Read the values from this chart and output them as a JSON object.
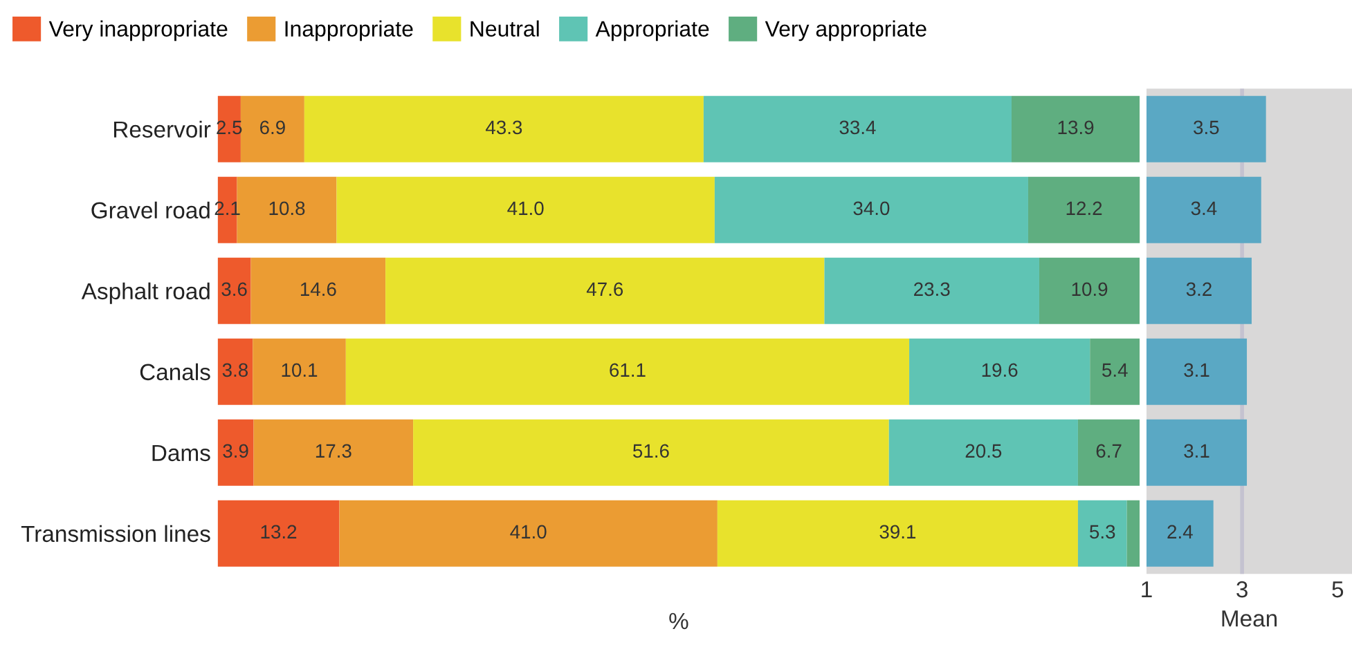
{
  "chart_data": [
    {
      "type": "bar",
      "orientation": "horizontal",
      "stacked": true,
      "xlabel": "%",
      "xlim": [
        0,
        100
      ],
      "tick_labels": "y",
      "legend": "top left",
      "grid": false,
      "categories": [
        "Reservoir",
        "Gravel road",
        "Asphalt road",
        "Canals",
        "Dams",
        "Transmission lines"
      ],
      "series": [
        {
          "name": "Very inappropriate",
          "color": "#ee5a2c",
          "values": [
            2.5,
            2.1,
            3.6,
            3.8,
            3.9,
            13.2
          ],
          "value_labels": [
            "2.5",
            "2.1",
            "3.6",
            "3.8",
            "3.9",
            "13.2"
          ]
        },
        {
          "name": "Inappropriate",
          "color": "#eb9c33",
          "values": [
            6.9,
            10.8,
            14.6,
            10.1,
            17.3,
            41.0
          ],
          "value_labels": [
            "6.9",
            "10.8",
            "14.6",
            "10.1",
            "17.3",
            "41.0"
          ]
        },
        {
          "name": "Neutral",
          "color": "#e8e22c",
          "values": [
            43.3,
            41.0,
            47.6,
            61.1,
            51.6,
            39.1
          ],
          "value_labels": [
            "43.3",
            "41.0",
            "47.6",
            "61.1",
            "51.6",
            "39.1"
          ]
        },
        {
          "name": "Appropriate",
          "color": "#5fc4b4",
          "values": [
            33.4,
            34.0,
            23.3,
            19.6,
            20.5,
            5.3
          ],
          "value_labels": [
            "33.4",
            "34.0",
            "23.3",
            "19.6",
            "20.5",
            "5.3"
          ]
        },
        {
          "name": "Very appropriate",
          "color": "#5fae80",
          "values": [
            13.9,
            12.2,
            10.9,
            5.4,
            6.7,
            1.4
          ],
          "value_labels": [
            "13.9",
            "12.2",
            "10.9",
            "5.4",
            "6.7",
            null
          ]
        }
      ]
    },
    {
      "type": "bar",
      "orientation": "horizontal",
      "xlabel": "Mean",
      "xlim": [
        1,
        5.3
      ],
      "xticks": [
        1,
        3,
        5
      ],
      "tick_labels": "x",
      "grid": false,
      "data_labels": true,
      "categories": [
        null,
        null,
        null,
        null,
        null,
        null
      ],
      "series": [
        {
          "color": "#5aa8c4",
          "values": [
            3.5,
            3.4,
            3.2,
            3.1,
            3.1,
            2.4
          ]
        }
      ],
      "ref_lines": [
        {
          "axis": "x",
          "value": 3,
          "color": "#c4c2d0"
        }
      ]
    }
  ]
}
